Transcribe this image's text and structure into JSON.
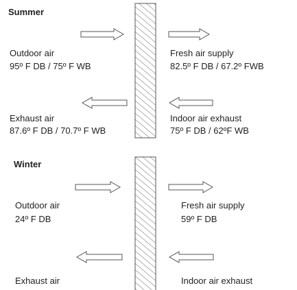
{
  "summer": {
    "title": "Summer",
    "outdoor": {
      "label": "Outdoor air",
      "condition": "95º F DB / 75º F WB"
    },
    "supply": {
      "label": "Fresh air supply",
      "condition": "82.5º F DB / 67.2º FWB"
    },
    "exhaust": {
      "label": "Exhaust air",
      "condition": "87.6º F DB / 70.7º F WB"
    },
    "indoor": {
      "label": "Indoor air exhaust",
      "condition": "75º F DB / 62ºF WB"
    }
  },
  "winter": {
    "title": "Winter",
    "outdoor": {
      "label": "Outdoor air",
      "condition": "24º F DB"
    },
    "supply": {
      "label": "Fresh air supply",
      "condition": "59º F DB"
    },
    "exhaust": {
      "label": "Exhaust air"
    },
    "indoor": {
      "label": "Indoor air exhaust"
    }
  }
}
